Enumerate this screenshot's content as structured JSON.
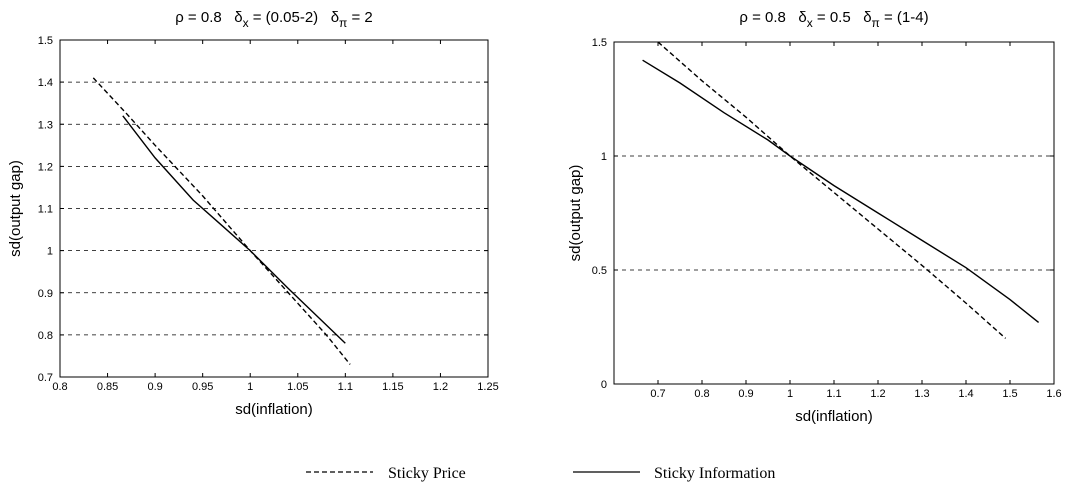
{
  "chart_data": [
    {
      "type": "line",
      "title_parts": {
        "rho": "ρ = 0.8",
        "dx_sym": "δ",
        "dx_sub": "x",
        "dx_val": " = (0.05-2)",
        "dp_sym": "δ",
        "dp_sub": "π",
        "dp_val": " = 2"
      },
      "xlabel": "sd(inflation)",
      "ylabel": "sd(output gap)",
      "xlim": [
        0.8,
        1.25
      ],
      "ylim": [
        0.7,
        1.5
      ],
      "xticks": [
        "0.8",
        "0.85",
        "0.9",
        "0.95",
        "1",
        "1.05",
        "1.1",
        "1.15",
        "1.2",
        "1.25"
      ],
      "yticks": [
        "0.7",
        "0.8",
        "0.9",
        "1",
        "1.1",
        "1.2",
        "1.3",
        "1.4",
        "1.5"
      ],
      "grid": "horizontal dashed",
      "series": [
        {
          "name": "Sticky Price",
          "style": "dashed",
          "x": [
            0.835,
            0.87,
            0.9,
            0.95,
            1.0,
            1.05,
            1.08,
            1.105
          ],
          "y": [
            1.41,
            1.325,
            1.25,
            1.13,
            1.0,
            0.875,
            0.8,
            0.73
          ]
        },
        {
          "name": "Sticky Information",
          "style": "solid",
          "x": [
            0.866,
            0.9,
            0.94,
            0.97,
            1.0,
            1.04,
            1.07,
            1.1
          ],
          "y": [
            1.32,
            1.22,
            1.12,
            1.06,
            1.0,
            0.91,
            0.845,
            0.78
          ]
        }
      ]
    },
    {
      "type": "line",
      "title_parts": {
        "rho": "ρ = 0.8",
        "dx_sym": "δ",
        "dx_sub": "x",
        "dx_val": " = 0.5",
        "dp_sym": "δ",
        "dp_sub": "π",
        "dp_val": " = (1-4)"
      },
      "xlabel": "sd(inflation)",
      "ylabel": "sd(output gap)",
      "xlim": [
        0.6,
        1.6
      ],
      "ylim": [
        0,
        1.5
      ],
      "xticks": [
        "0.7",
        "0.8",
        "0.9",
        "1",
        "1.1",
        "1.2",
        "1.3",
        "1.4",
        "1.5",
        "1.6"
      ],
      "yticks": [
        "0",
        "0.5",
        "1",
        "1.5"
      ],
      "grid": "horizontal dashed",
      "series": [
        {
          "name": "Sticky Price",
          "style": "dashed",
          "x": [
            0.7,
            0.8,
            0.9,
            1.0,
            1.1,
            1.2,
            1.3,
            1.4,
            1.49
          ],
          "y": [
            1.5,
            1.33,
            1.17,
            1.0,
            0.84,
            0.68,
            0.52,
            0.355,
            0.2
          ]
        },
        {
          "name": "Sticky Information",
          "style": "solid",
          "x": [
            0.665,
            0.75,
            0.85,
            0.95,
            1.0,
            1.1,
            1.2,
            1.3,
            1.4,
            1.5,
            1.565
          ],
          "y": [
            1.42,
            1.32,
            1.19,
            1.07,
            1.0,
            0.87,
            0.75,
            0.63,
            0.51,
            0.37,
            0.27
          ]
        }
      ]
    }
  ],
  "legend": {
    "items": [
      {
        "label": "Sticky Price",
        "style": "dashed"
      },
      {
        "label": "Sticky Information",
        "style": "solid"
      }
    ]
  }
}
